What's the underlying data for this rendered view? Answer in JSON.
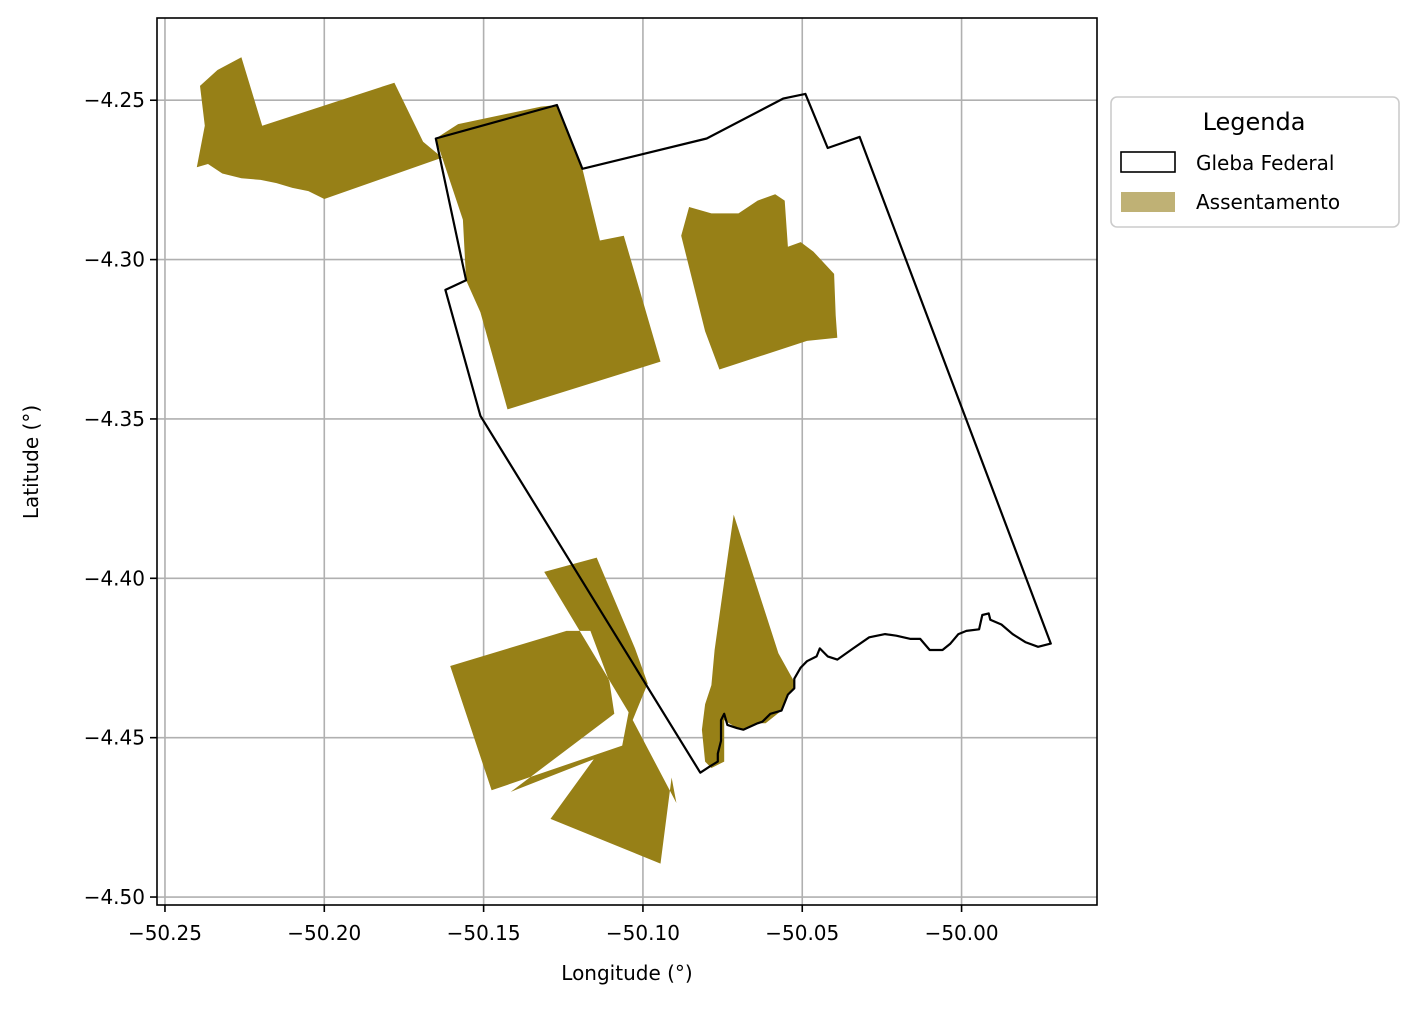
{
  "chart_data": {
    "type": "map",
    "xlabel": "Longitude (°)",
    "ylabel": "Latitude (°)",
    "xlim": [
      -50.2525,
      -49.9575
    ],
    "ylim": [
      -4.5025,
      -4.2242
    ],
    "grid": true,
    "x_ticks": [
      -50.25,
      -50.2,
      -50.15,
      -50.1,
      -50.05,
      -50.0
    ],
    "x_tick_labels": [
      "−50.25",
      "−50.20",
      "−50.15",
      "−50.10",
      "−50.05",
      "−50.00"
    ],
    "y_ticks": [
      -4.25,
      -4.3,
      -4.35,
      -4.4,
      -4.45,
      -4.5
    ],
    "y_tick_labels": [
      "−4.25",
      "−4.30",
      "−4.35",
      "−4.40",
      "−4.45",
      "−4.50"
    ],
    "legend": {
      "title": "Legenda",
      "placement": "outside-upper-right",
      "entries": [
        {
          "label": "Gleba Federal",
          "style": "outline",
          "edge_color": "#000000",
          "fill": "#ffffff"
        },
        {
          "label": "Assentamento",
          "style": "fill",
          "color": "#bfb175"
        }
      ]
    },
    "layers": [
      {
        "name": "Gleba Federal",
        "style": "outline",
        "edge_color": "#000000",
        "polygons": [
          [
            [
              -50.165,
              -4.262
            ],
            [
              -50.127,
              -4.2515
            ],
            [
              -50.119,
              -4.2715
            ],
            [
              -50.08,
              -4.262
            ],
            [
              -50.056,
              -4.2495
            ],
            [
              -50.049,
              -4.248
            ],
            [
              -50.042,
              -4.265
            ],
            [
              -50.032,
              -4.2615
            ],
            [
              -49.972,
              -4.4205
            ],
            [
              -49.976,
              -4.4215
            ],
            [
              -49.98,
              -4.42
            ],
            [
              -49.984,
              -4.4175
            ],
            [
              -49.9875,
              -4.4145
            ],
            [
              -49.991,
              -4.413
            ],
            [
              -49.9915,
              -4.411
            ],
            [
              -49.9935,
              -4.4115
            ],
            [
              -49.9945,
              -4.416
            ],
            [
              -49.9985,
              -4.4165
            ],
            [
              -50.001,
              -4.4175
            ],
            [
              -50.0035,
              -4.4205
            ],
            [
              -50.006,
              -4.4225
            ],
            [
              -50.01,
              -4.4225
            ],
            [
              -50.013,
              -4.419
            ],
            [
              -50.016,
              -4.419
            ],
            [
              -50.0205,
              -4.418
            ],
            [
              -50.024,
              -4.4175
            ],
            [
              -50.029,
              -4.4185
            ],
            [
              -50.034,
              -4.422
            ],
            [
              -50.039,
              -4.4255
            ],
            [
              -50.042,
              -4.4245
            ],
            [
              -50.0445,
              -4.422
            ],
            [
              -50.0455,
              -4.4245
            ],
            [
              -50.0485,
              -4.426
            ],
            [
              -50.0505,
              -4.428
            ],
            [
              -50.0525,
              -4.4315
            ],
            [
              -50.0525,
              -4.4345
            ],
            [
              -50.0545,
              -4.4365
            ],
            [
              -50.0555,
              -4.439
            ],
            [
              -50.0565,
              -4.4415
            ],
            [
              -50.06,
              -4.4425
            ],
            [
              -50.0625,
              -4.445
            ],
            [
              -50.064,
              -4.4455
            ],
            [
              -50.0685,
              -4.4475
            ],
            [
              -50.0705,
              -4.447
            ],
            [
              -50.0735,
              -4.446
            ],
            [
              -50.0745,
              -4.4425
            ],
            [
              -50.0755,
              -4.4445
            ],
            [
              -50.0755,
              -4.451
            ],
            [
              -50.0765,
              -4.455
            ],
            [
              -50.0765,
              -4.4575
            ],
            [
              -50.079,
              -4.459
            ],
            [
              -50.082,
              -4.461
            ],
            [
              -50.151,
              -4.349
            ],
            [
              -50.162,
              -4.3095
            ],
            [
              -50.1555,
              -4.3065
            ],
            [
              -50.165,
              -4.262
            ]
          ]
        ]
      },
      {
        "name": "Assentamento",
        "style": "fill",
        "color": "#978017",
        "polygons": [
          [
            [
              -50.239,
              -4.2455
            ],
            [
              -50.2335,
              -4.2405
            ],
            [
              -50.226,
              -4.2365
            ],
            [
              -50.2195,
              -4.258
            ],
            [
              -50.178,
              -4.2445
            ],
            [
              -50.169,
              -4.263
            ],
            [
              -50.163,
              -4.268
            ],
            [
              -50.2,
              -4.281
            ],
            [
              -50.205,
              -4.2785
            ],
            [
              -50.21,
              -4.2775
            ],
            [
              -50.215,
              -4.276
            ],
            [
              -50.22,
              -4.275
            ],
            [
              -50.226,
              -4.2745
            ],
            [
              -50.232,
              -4.273
            ],
            [
              -50.2365,
              -4.27
            ],
            [
              -50.24,
              -4.271
            ],
            [
              -50.2375,
              -4.258
            ],
            [
              -50.239,
              -4.2455
            ]
          ],
          [
            [
              -50.165,
              -4.262
            ],
            [
              -50.158,
              -4.2575
            ],
            [
              -50.132,
              -4.252
            ],
            [
              -50.127,
              -4.2515
            ],
            [
              -50.119,
              -4.2715
            ],
            [
              -50.1135,
              -4.294
            ],
            [
              -50.106,
              -4.2925
            ],
            [
              -50.0945,
              -4.332
            ],
            [
              -50.1425,
              -4.347
            ],
            [
              -50.151,
              -4.3165
            ],
            [
              -50.1555,
              -4.3065
            ],
            [
              -50.1565,
              -4.2875
            ],
            [
              -50.165,
              -4.262
            ]
          ],
          [
            [
              -50.0855,
              -4.2835
            ],
            [
              -50.0785,
              -4.2855
            ],
            [
              -50.07,
              -4.2855
            ],
            [
              -50.064,
              -4.2815
            ],
            [
              -50.0585,
              -4.2795
            ],
            [
              -50.0555,
              -4.2815
            ],
            [
              -50.0545,
              -4.296
            ],
            [
              -50.0505,
              -4.2945
            ],
            [
              -50.0465,
              -4.2975
            ],
            [
              -50.04,
              -4.3045
            ],
            [
              -50.0395,
              -4.3175
            ],
            [
              -50.039,
              -4.3245
            ],
            [
              -50.0485,
              -4.3255
            ],
            [
              -50.076,
              -4.3345
            ],
            [
              -50.0805,
              -4.3225
            ],
            [
              -50.088,
              -4.2925
            ],
            [
              -50.0855,
              -4.2835
            ]
          ],
          [
            [
              -50.131,
              -4.398
            ],
            [
              -50.1145,
              -4.3935
            ],
            [
              -50.1025,
              -4.422
            ],
            [
              -50.0985,
              -4.433
            ],
            [
              -50.1065,
              -4.4525
            ],
            [
              -50.1045,
              -4.442
            ],
            [
              -50.0895,
              -4.4705
            ],
            [
              -50.091,
              -4.4625
            ],
            [
              -50.0945,
              -4.4895
            ],
            [
              -50.129,
              -4.4755
            ],
            [
              -50.1145,
              -4.4555
            ],
            [
              -50.1045,
              -4.4525
            ],
            [
              -50.1415,
              -4.467
            ],
            [
              -50.109,
              -4.4425
            ],
            [
              -50.1105,
              -4.4325
            ],
            [
              -50.1165,
              -4.4165
            ],
            [
              -50.124,
              -4.4165
            ],
            [
              -50.1605,
              -4.4275
            ],
            [
              -50.1475,
              -4.4665
            ],
            [
              -50.1065,
              -4.4525
            ],
            [
              -50.1045,
              -4.442
            ],
            [
              -50.131,
              -4.398
            ]
          ],
          [
            [
              -50.0885,
              -4.3865
            ],
            [
              -50.0715,
              -4.38
            ],
            [
              -50.0745,
              -4.401
            ],
            [
              -50.0775,
              -4.4225
            ],
            [
              -50.0785,
              -4.4335
            ],
            [
              -50.0805,
              -4.4395
            ],
            [
              -50.0815,
              -4.4475
            ],
            [
              -50.0805,
              -4.4575
            ],
            [
              -50.0785,
              -4.4595
            ],
            [
              -50.0745,
              -4.4575
            ],
            [
              -50.0745,
              -4.4445
            ],
            [
              -50.0705,
              -4.447
            ],
            [
              -50.0685,
              -4.4475
            ],
            [
              -50.064,
              -4.4455
            ],
            [
              -50.0615,
              -4.4455
            ],
            [
              -50.0565,
              -4.4415
            ],
            [
              -50.0555,
              -4.439
            ],
            [
              -50.0545,
              -4.4365
            ],
            [
              -50.0525,
              -4.4345
            ],
            [
              -50.0525,
              -4.4325
            ],
            [
              -50.0575,
              -4.4235
            ],
            [
              -50.0715,
              -4.38
            ],
            [
              -50.0885,
              -4.3865
            ]
          ]
        ]
      }
    ]
  }
}
